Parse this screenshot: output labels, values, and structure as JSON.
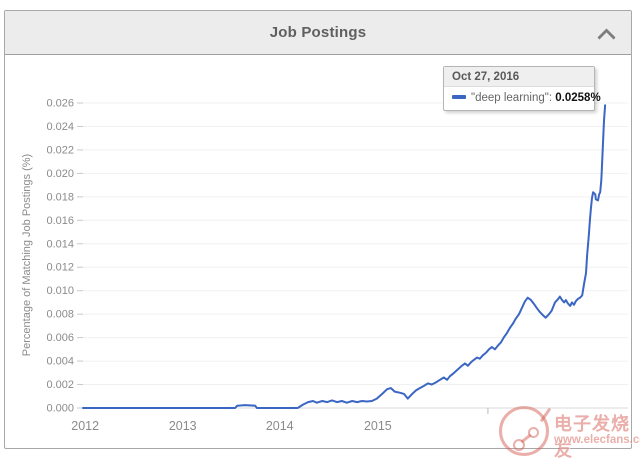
{
  "header": {
    "title": "Job Postings",
    "collapse_icon": "chevron-up"
  },
  "tooltip": {
    "date": "Oct 27, 2016",
    "series_label": "\"deep learning\"",
    "separator": ": ",
    "value": "0.0258%"
  },
  "watermark": {
    "logo_text": "电子发烧友",
    "url_text": "www.elecfans.com",
    "color": "#d66056"
  },
  "colors": {
    "line_blue": "#3b66c4",
    "header_bg": "#ececec",
    "grid": "#f0f0f0",
    "baseline": "#d9d9d9",
    "axis_text": "#8b8b8b"
  },
  "chart_data": {
    "type": "line",
    "title": "Job Postings",
    "xlabel": "",
    "ylabel": "Percentage of Matching Job Postings (%)",
    "x_range_note": "time axis from Jan 2012 to Oct 27 2016; t is fraction of plotted x-axis width",
    "x_tick_labels": [
      "2012",
      "2013",
      "2014",
      "2015"
    ],
    "x_tick_positions": [
      0.004,
      0.183,
      0.361,
      0.541
    ],
    "extra_x_tick_position": 0.743,
    "y_ticks": [
      "0.000",
      "0.002",
      "0.004",
      "0.006",
      "0.008",
      "0.010",
      "0.012",
      "0.014",
      "0.016",
      "0.018",
      "0.020",
      "0.022",
      "0.024",
      "0.026"
    ],
    "ylim": [
      0,
      0.026
    ],
    "grid": true,
    "legend_position": "tooltip",
    "series": [
      {
        "name": "\"deep learning\"",
        "color": "#3b66c4",
        "highlight": {
          "date": "Oct 27, 2016",
          "value_percent": 0.0258
        },
        "points": [
          [
            0.0,
            0
          ],
          [
            0.05,
            0
          ],
          [
            0.1,
            0
          ],
          [
            0.15,
            0
          ],
          [
            0.2,
            0
          ],
          [
            0.25,
            0
          ],
          [
            0.279,
            0
          ],
          [
            0.283,
            0.0002
          ],
          [
            0.297,
            0.00025
          ],
          [
            0.316,
            0.0002
          ],
          [
            0.319,
            0
          ],
          [
            0.36,
            0
          ],
          [
            0.394,
            0
          ],
          [
            0.404,
            0.0003
          ],
          [
            0.413,
            0.0005
          ],
          [
            0.422,
            0.0006
          ],
          [
            0.429,
            0.00045
          ],
          [
            0.439,
            0.0006
          ],
          [
            0.448,
            0.0005
          ],
          [
            0.457,
            0.00065
          ],
          [
            0.466,
            0.0005
          ],
          [
            0.475,
            0.0006
          ],
          [
            0.484,
            0.00045
          ],
          [
            0.494,
            0.0006
          ],
          [
            0.503,
            0.0005
          ],
          [
            0.512,
            0.0006
          ],
          [
            0.521,
            0.00055
          ],
          [
            0.53,
            0.0006
          ],
          [
            0.539,
            0.0008
          ],
          [
            0.549,
            0.0012
          ],
          [
            0.558,
            0.0016
          ],
          [
            0.565,
            0.0017
          ],
          [
            0.572,
            0.0014
          ],
          [
            0.582,
            0.0013
          ],
          [
            0.589,
            0.0012
          ],
          [
            0.596,
            0.0008
          ],
          [
            0.604,
            0.0012
          ],
          [
            0.611,
            0.0015
          ],
          [
            0.618,
            0.0017
          ],
          [
            0.626,
            0.0019
          ],
          [
            0.633,
            0.0021
          ],
          [
            0.64,
            0.002
          ],
          [
            0.648,
            0.0022
          ],
          [
            0.655,
            0.0024
          ],
          [
            0.662,
            0.0026
          ],
          [
            0.668,
            0.0024
          ],
          [
            0.673,
            0.0027
          ],
          [
            0.681,
            0.003
          ],
          [
            0.688,
            0.0033
          ],
          [
            0.695,
            0.0036
          ],
          [
            0.701,
            0.0038
          ],
          [
            0.706,
            0.0036
          ],
          [
            0.712,
            0.0039
          ],
          [
            0.717,
            0.0041
          ],
          [
            0.723,
            0.0043
          ],
          [
            0.728,
            0.0042
          ],
          [
            0.734,
            0.0045
          ],
          [
            0.739,
            0.0047
          ],
          [
            0.745,
            0.005
          ],
          [
            0.75,
            0.0052
          ],
          [
            0.756,
            0.005
          ],
          [
            0.761,
            0.0053
          ],
          [
            0.767,
            0.0056
          ],
          [
            0.772,
            0.006
          ],
          [
            0.778,
            0.0064
          ],
          [
            0.783,
            0.0068
          ],
          [
            0.789,
            0.0072
          ],
          [
            0.794,
            0.0076
          ],
          [
            0.8,
            0.008
          ],
          [
            0.806,
            0.0086
          ],
          [
            0.811,
            0.0091
          ],
          [
            0.816,
            0.0094
          ],
          [
            0.822,
            0.0092
          ],
          [
            0.827,
            0.0089
          ],
          [
            0.833,
            0.0085
          ],
          [
            0.838,
            0.0082
          ],
          [
            0.844,
            0.0079
          ],
          [
            0.849,
            0.0077
          ],
          [
            0.855,
            0.008
          ],
          [
            0.86,
            0.0083
          ],
          [
            0.866,
            0.009
          ],
          [
            0.872,
            0.0093
          ],
          [
            0.875,
            0.0095
          ],
          [
            0.879,
            0.0092
          ],
          [
            0.883,
            0.009
          ],
          [
            0.886,
            0.0092
          ],
          [
            0.89,
            0.0089
          ],
          [
            0.894,
            0.0087
          ],
          [
            0.897,
            0.009
          ],
          [
            0.901,
            0.0088
          ],
          [
            0.904,
            0.0091
          ],
          [
            0.908,
            0.0093
          ],
          [
            0.912,
            0.0094
          ],
          [
            0.916,
            0.0096
          ],
          [
            0.919,
            0.0105
          ],
          [
            0.923,
            0.0115
          ],
          [
            0.925,
            0.013
          ],
          [
            0.928,
            0.0147
          ],
          [
            0.93,
            0.016
          ],
          [
            0.932,
            0.017
          ],
          [
            0.934,
            0.0179
          ],
          [
            0.936,
            0.0184
          ],
          [
            0.94,
            0.0182
          ],
          [
            0.941,
            0.0178
          ],
          [
            0.945,
            0.0177
          ],
          [
            0.947,
            0.0182
          ],
          [
            0.949,
            0.0184
          ],
          [
            0.951,
            0.0194
          ],
          [
            0.952,
            0.0203
          ],
          [
            0.954,
            0.0224
          ],
          [
            0.956,
            0.0245
          ],
          [
            0.958,
            0.0258
          ]
        ]
      }
    ]
  }
}
